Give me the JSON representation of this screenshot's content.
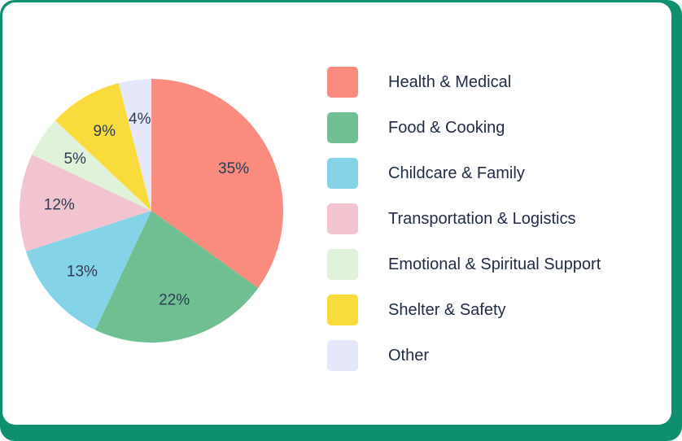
{
  "chart_data": {
    "type": "pie",
    "title": "",
    "categories": [
      "Health & Medical",
      "Food & Cooking",
      "Childcare & Family",
      "Transportation & Logistics",
      "Emotional & Spiritual Support",
      "Shelter & Safety",
      "Other"
    ],
    "values": [
      35,
      22,
      13,
      12,
      5,
      9,
      4
    ],
    "labels": [
      "35%",
      "22%",
      "13%",
      "12%",
      "5%",
      "9%",
      "4%"
    ],
    "colors": [
      "#fa8c7f",
      "#6fbf93",
      "#84d3e6",
      "#f2c4cf",
      "#e0f2da",
      "#fadb3c",
      "#e5e8fa"
    ],
    "legend_position": "right"
  }
}
